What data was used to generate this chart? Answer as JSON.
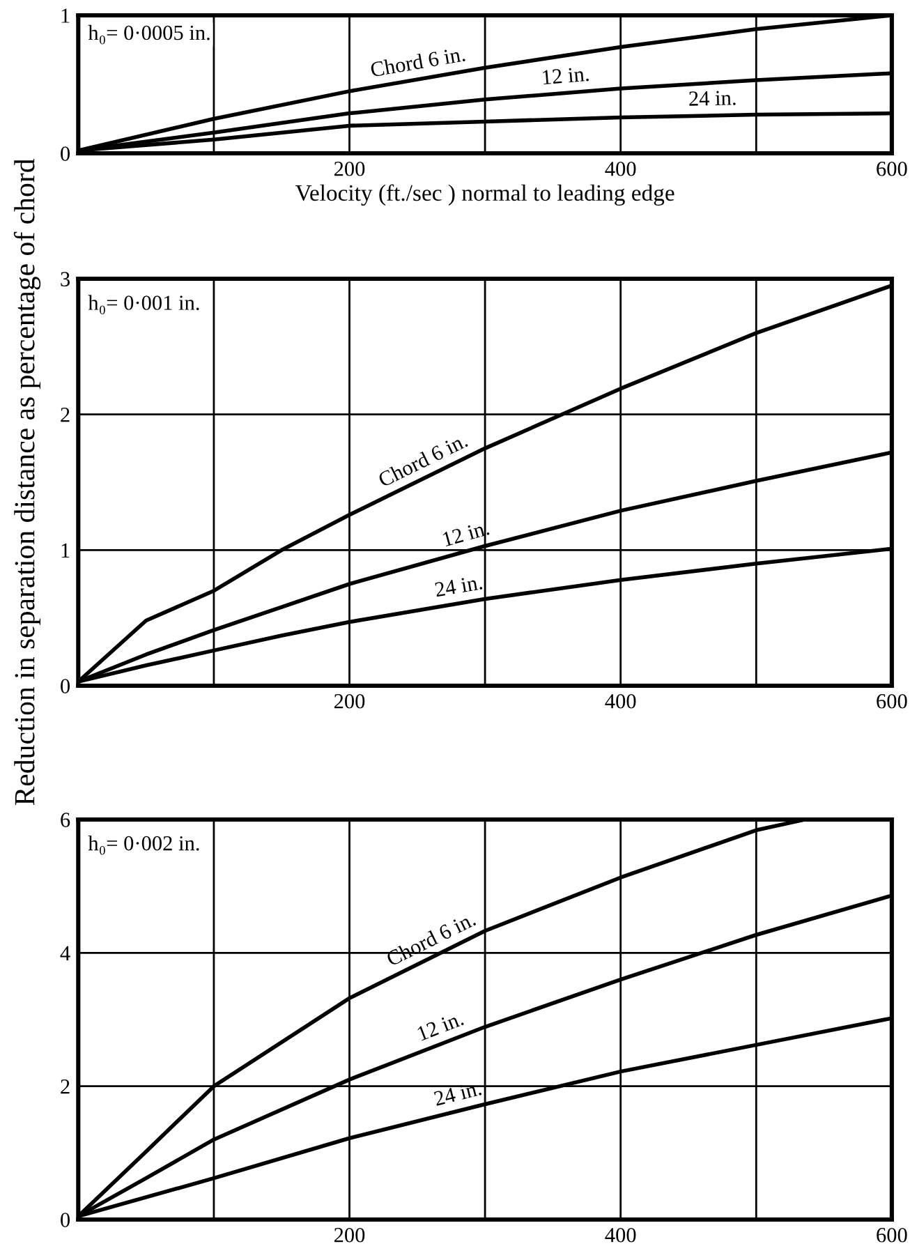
{
  "chart_data": [
    {
      "type": "line",
      "xlabel": "Velocity (ft./sec ) normal to leading edge",
      "annotations": [
        "h₀= 0·0005 in."
      ],
      "xlim": [
        0,
        600
      ],
      "ylim": [
        0,
        1
      ],
      "xticks": [
        {
          "value": 100,
          "label": null
        },
        200,
        {
          "value": 300,
          "label": null
        },
        400,
        {
          "value": 500,
          "label": null
        },
        600
      ],
      "yticks": [
        0,
        1
      ],
      "grid": true,
      "line_style": "solid",
      "x": [
        0,
        100,
        200,
        300,
        400,
        500,
        600
      ],
      "series": [
        {
          "name": "Chord 6 in.",
          "color": "#000000",
          "values": [
            0.02,
            0.25,
            0.45,
            0.62,
            0.77,
            0.9,
            1.0
          ]
        },
        {
          "name": "12 in.",
          "color": "#000000",
          "values": [
            0.02,
            0.15,
            0.29,
            0.39,
            0.47,
            0.53,
            0.58
          ]
        },
        {
          "name": "24 in.",
          "color": "#000000",
          "values": [
            0.02,
            0.1,
            0.2,
            0.23,
            0.26,
            0.28,
            0.29
          ]
        }
      ]
    },
    {
      "type": "line",
      "ylabel": "Reduction in separation distance as percentage of chord",
      "annotations": [
        "h₀= 0·001 in."
      ],
      "xlim": [
        0,
        600
      ],
      "ylim": [
        0,
        3
      ],
      "xticks": [
        {
          "value": 100,
          "label": null
        },
        200,
        {
          "value": 300,
          "label": null
        },
        400,
        {
          "value": 500,
          "label": null
        },
        600
      ],
      "yticks": [
        0,
        1,
        2,
        3
      ],
      "grid": true,
      "line_style": "solid",
      "x": [
        0,
        50,
        100,
        150,
        200,
        300,
        400,
        500,
        600
      ],
      "series": [
        {
          "name": "Chord 6 in.",
          "color": "#000000",
          "values": [
            0.03,
            0.48,
            0.7,
            1.0,
            1.26,
            1.75,
            2.19,
            2.6,
            2.95
          ]
        },
        {
          "name": "12 in.",
          "color": "#000000",
          "values": [
            0.03,
            0.23,
            0.41,
            0.58,
            0.75,
            1.03,
            1.29,
            1.51,
            1.72
          ]
        },
        {
          "name": "24 in.",
          "color": "#000000",
          "values": [
            0.03,
            0.15,
            0.26,
            0.37,
            0.47,
            0.64,
            0.78,
            0.9,
            1.01
          ]
        }
      ]
    },
    {
      "type": "line",
      "annotations": [
        "h₀= 0·002 in."
      ],
      "xlim": [
        0,
        600
      ],
      "ylim": [
        0,
        6
      ],
      "xticks": [
        {
          "value": 100,
          "label": null
        },
        200,
        {
          "value": 300,
          "label": null
        },
        400,
        {
          "value": 500,
          "label": null
        },
        600
      ],
      "yticks": [
        0,
        2,
        4,
        6
      ],
      "grid": true,
      "line_style": "solid",
      "series": [
        {
          "name": "Chord 6 in.",
          "color": "#000000",
          "x": [
            0,
            50,
            100,
            200,
            300,
            400,
            500,
            536
          ],
          "values": [
            0.05,
            1.02,
            2.0,
            3.32,
            4.33,
            5.13,
            5.84,
            6.0
          ]
        },
        {
          "name": "12 in.",
          "color": "#000000",
          "x": [
            0,
            50,
            100,
            200,
            300,
            400,
            500,
            600
          ],
          "values": [
            0.05,
            0.62,
            1.2,
            2.1,
            2.89,
            3.6,
            4.27,
            4.86
          ]
        },
        {
          "name": "24 in.",
          "color": "#000000",
          "x": [
            0,
            100,
            200,
            300,
            400,
            500,
            600
          ],
          "values": [
            0.05,
            0.62,
            1.22,
            1.73,
            2.22,
            2.62,
            3.02
          ]
        }
      ]
    }
  ]
}
